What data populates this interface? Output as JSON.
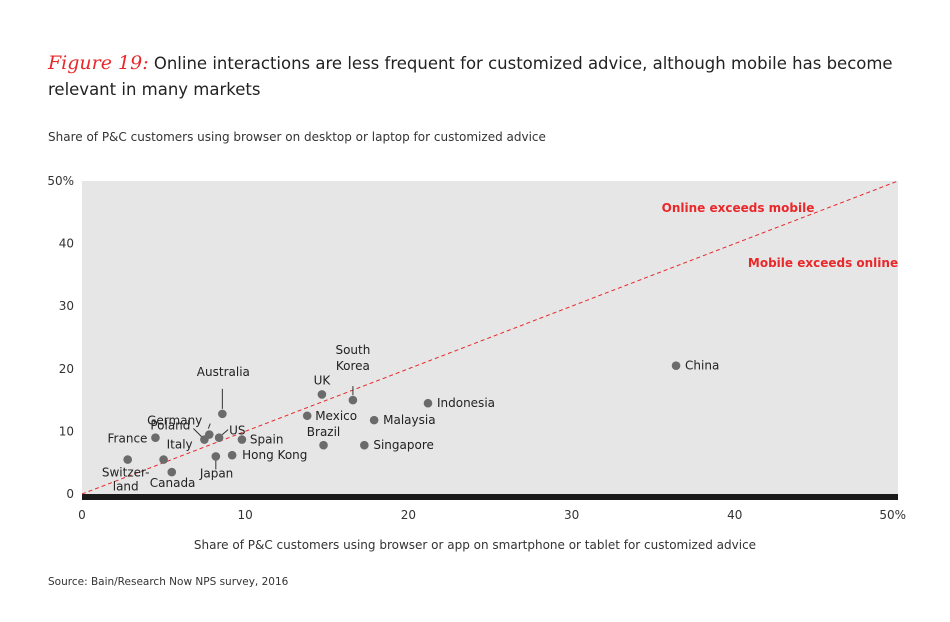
{
  "figure": {
    "label": "Figure 19:",
    "title": "Online interactions are less frequent for customized advice, although mobile has become relevant in many markets"
  },
  "y_caption": "Share of P&C customers using browser on desktop or laptop for customized advice",
  "x_caption": "Share of P&C customers using browser or app on smartphone or tablet for customized advice",
  "source": "Source: Bain/Research Now NPS survey, 2016",
  "colors": {
    "accent": "#e8282b",
    "plot_bg": "#e6e6e6",
    "point": "#6b6b6b",
    "axis": "#1a1a1a"
  },
  "chart_data": {
    "type": "scatter",
    "xlim": [
      0,
      50
    ],
    "ylim": [
      0,
      50
    ],
    "x_ticks": [
      "0",
      "10",
      "20",
      "30",
      "40",
      "50%"
    ],
    "y_ticks": [
      "0",
      "10",
      "20",
      "30",
      "40",
      "50%"
    ],
    "grid": false,
    "reference_line": {
      "from": [
        0,
        0
      ],
      "to": [
        50,
        50
      ],
      "style": "dashed"
    },
    "annotations": [
      "Online exceeds mobile",
      "Mobile exceeds online"
    ],
    "points": [
      {
        "label": "Switzer-",
        "label2": "land",
        "x": 2.8,
        "y": 5.5
      },
      {
        "label": "France",
        "x": 4.5,
        "y": 9.0
      },
      {
        "label": "Italy",
        "x": 5.0,
        "y": 5.5
      },
      {
        "label": "Canada",
        "x": 5.5,
        "y": 3.5
      },
      {
        "label": "Poland",
        "x": 7.5,
        "y": 8.7
      },
      {
        "label": "Germany",
        "x": 7.8,
        "y": 9.5
      },
      {
        "label": "US",
        "x": 8.4,
        "y": 9.0
      },
      {
        "label": "Japan",
        "x": 8.2,
        "y": 6.0
      },
      {
        "label": "Australia",
        "x": 8.6,
        "y": 12.8
      },
      {
        "label": "Hong Kong",
        "x": 9.2,
        "y": 6.2
      },
      {
        "label": "Spain",
        "x": 9.8,
        "y": 8.7
      },
      {
        "label": "Mexico",
        "x": 13.8,
        "y": 12.5
      },
      {
        "label": "UK",
        "x": 14.7,
        "y": 15.9
      },
      {
        "label": "Brazil",
        "x": 14.8,
        "y": 7.8
      },
      {
        "label": "South",
        "label2": "Korea",
        "x": 16.6,
        "y": 15.0
      },
      {
        "label": "Singapore",
        "x": 17.3,
        "y": 7.8
      },
      {
        "label": "Malaysia",
        "x": 17.9,
        "y": 11.8
      },
      {
        "label": "Indonesia",
        "x": 21.2,
        "y": 14.5
      },
      {
        "label": "China",
        "x": 36.4,
        "y": 20.5
      }
    ]
  }
}
